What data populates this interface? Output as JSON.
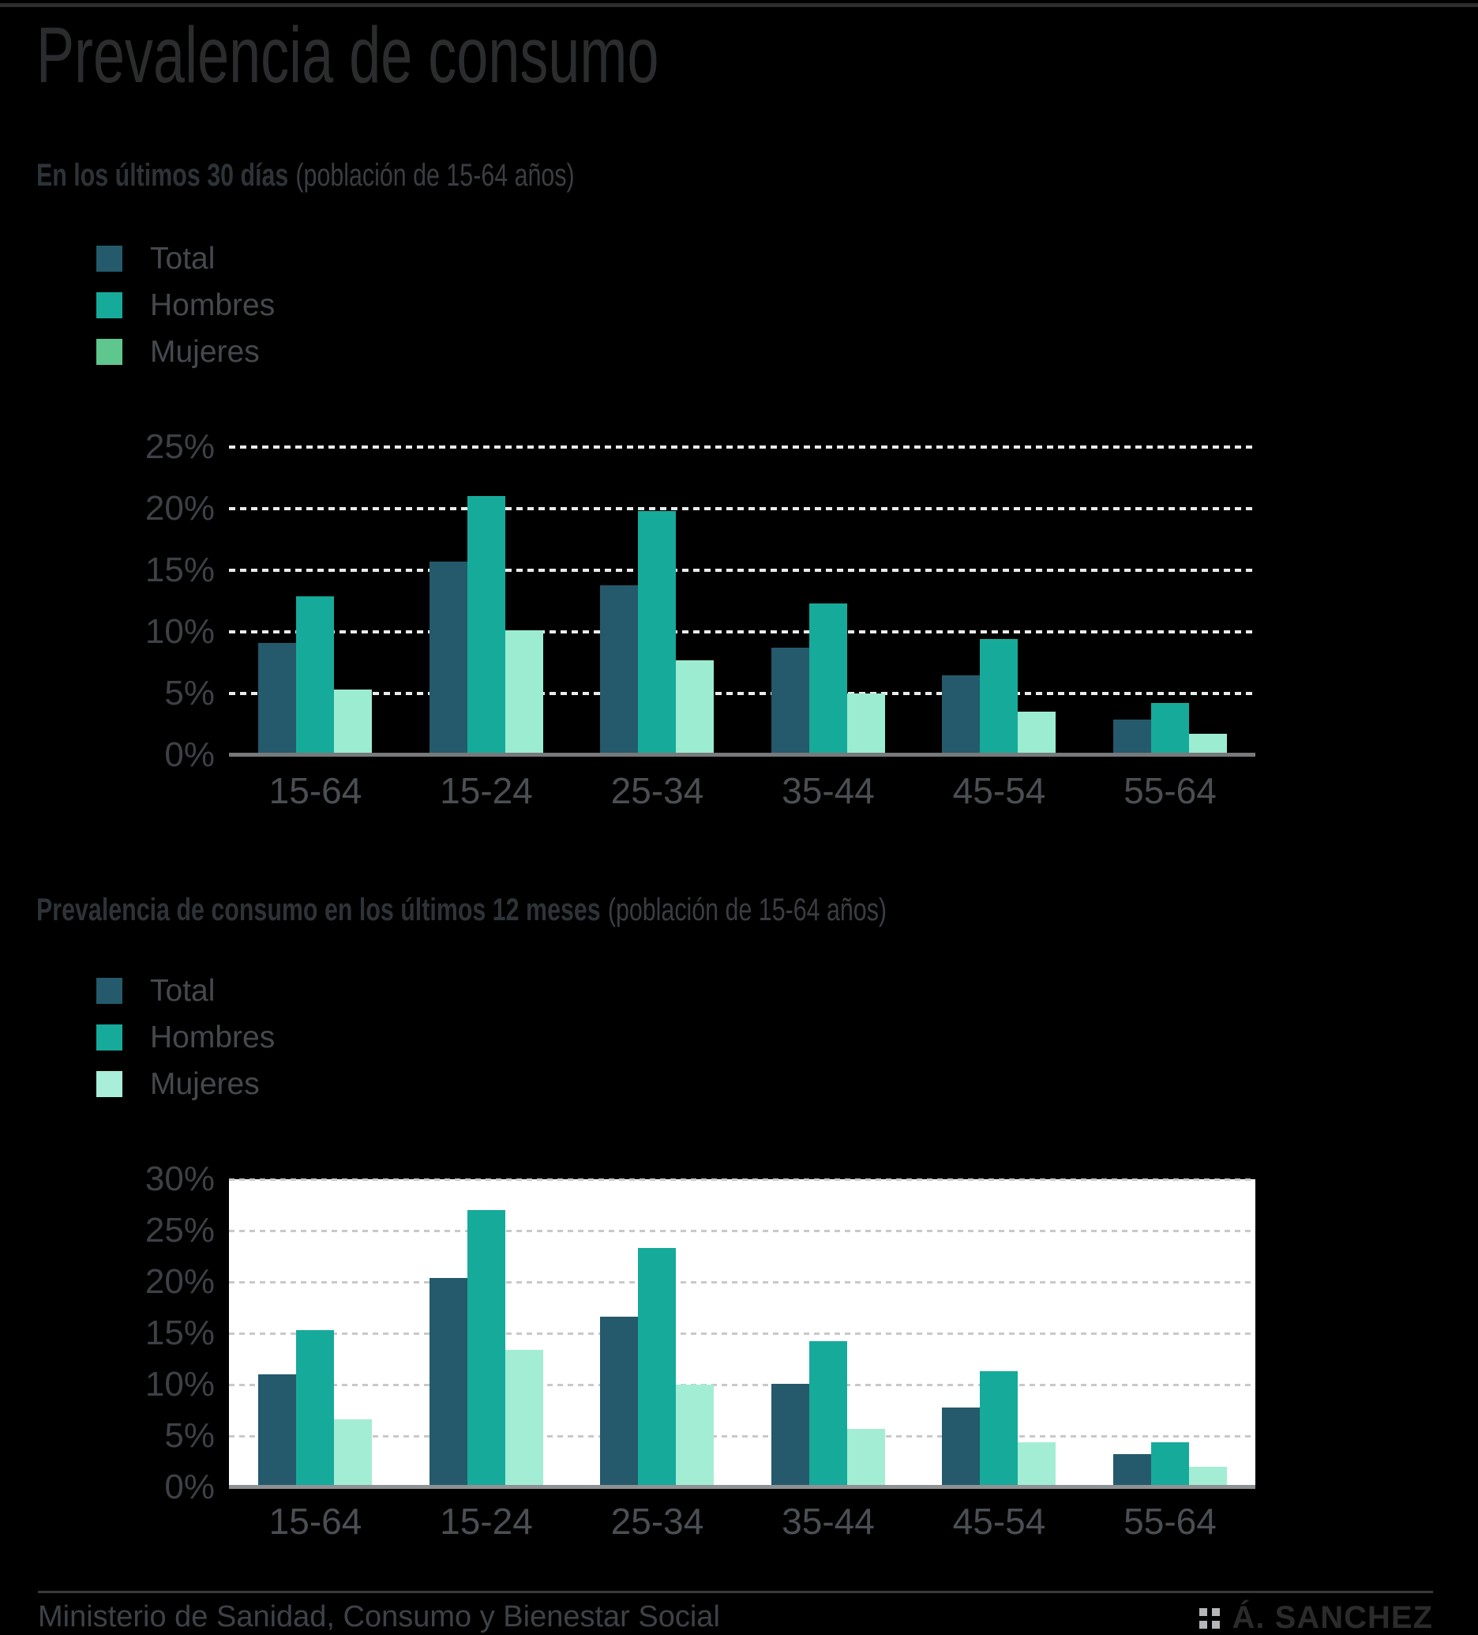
{
  "header": {
    "title": "Prevalencia de consumo"
  },
  "sections": [
    {
      "heading_bold": "En los últimos 30 días",
      "heading_note": "(población de 15-64 años)",
      "legend": [
        {
          "label": "Total",
          "color": "#245a6b"
        },
        {
          "label": "Hombres",
          "color": "#16aa9b"
        },
        {
          "label": "Mujeres",
          "color": "#5fc68d"
        }
      ]
    },
    {
      "heading_bold": "Prevalencia de consumo en los últimos 12 meses",
      "heading_note": "(población de 15-64 años)",
      "legend": [
        {
          "label": "Total",
          "color": "#245a6b"
        },
        {
          "label": "Hombres",
          "color": "#16aa9b"
        },
        {
          "label": "Mujeres",
          "color": "#a8eed8"
        }
      ]
    }
  ],
  "chart_data": [
    {
      "type": "bar",
      "title": "En los últimos 30 días (población de 15-64 años)",
      "categories": [
        "15-64",
        "15-24",
        "25-34",
        "35-44",
        "45-54",
        "55-64"
      ],
      "series": [
        {
          "name": "Total",
          "color": "#245a6b",
          "values": [
            9.1,
            15.7,
            13.8,
            8.7,
            6.5,
            2.9
          ]
        },
        {
          "name": "Hombres",
          "color": "#16aa9b",
          "values": [
            12.9,
            21.0,
            19.8,
            12.3,
            9.4,
            4.2
          ]
        },
        {
          "name": "Mujeres",
          "color": "#9cecd1",
          "values": [
            5.3,
            10.1,
            7.7,
            5.0,
            3.5,
            1.7
          ]
        }
      ],
      "xlabel": "",
      "ylabel": "",
      "ylim": [
        0,
        25
      ],
      "yticks": [
        0,
        5,
        10,
        15,
        20,
        25
      ],
      "grid": "dotted horizontal, white on black",
      "plot_background": "#000000",
      "legend_position": "top-left"
    },
    {
      "type": "bar",
      "title": "Prevalencia de consumo en los últimos 12 meses (población de 15-64 años)",
      "categories": [
        "15-64",
        "15-24",
        "25-34",
        "35-44",
        "45-54",
        "55-64"
      ],
      "series": [
        {
          "name": "Total",
          "color": "#245a6b",
          "values": [
            11.0,
            20.4,
            16.6,
            10.1,
            7.8,
            3.2
          ]
        },
        {
          "name": "Hombres",
          "color": "#16aa9b",
          "values": [
            15.3,
            27.0,
            23.3,
            14.2,
            11.3,
            4.4
          ]
        },
        {
          "name": "Mujeres",
          "color": "#a3edd5",
          "values": [
            6.6,
            13.4,
            10.0,
            5.7,
            4.4,
            2.0
          ]
        }
      ],
      "xlabel": "",
      "ylabel": "",
      "ylim": [
        0,
        30
      ],
      "yticks": [
        0,
        5,
        10,
        15,
        20,
        25,
        30
      ],
      "grid": "dotted horizontal, gray on white",
      "plot_background": "#ffffff",
      "legend_position": "top-left"
    }
  ],
  "footer": {
    "source": "Ministerio de Sanidad, Consumo y Bienestar Social",
    "credit": "Á. SANCHEZ"
  }
}
